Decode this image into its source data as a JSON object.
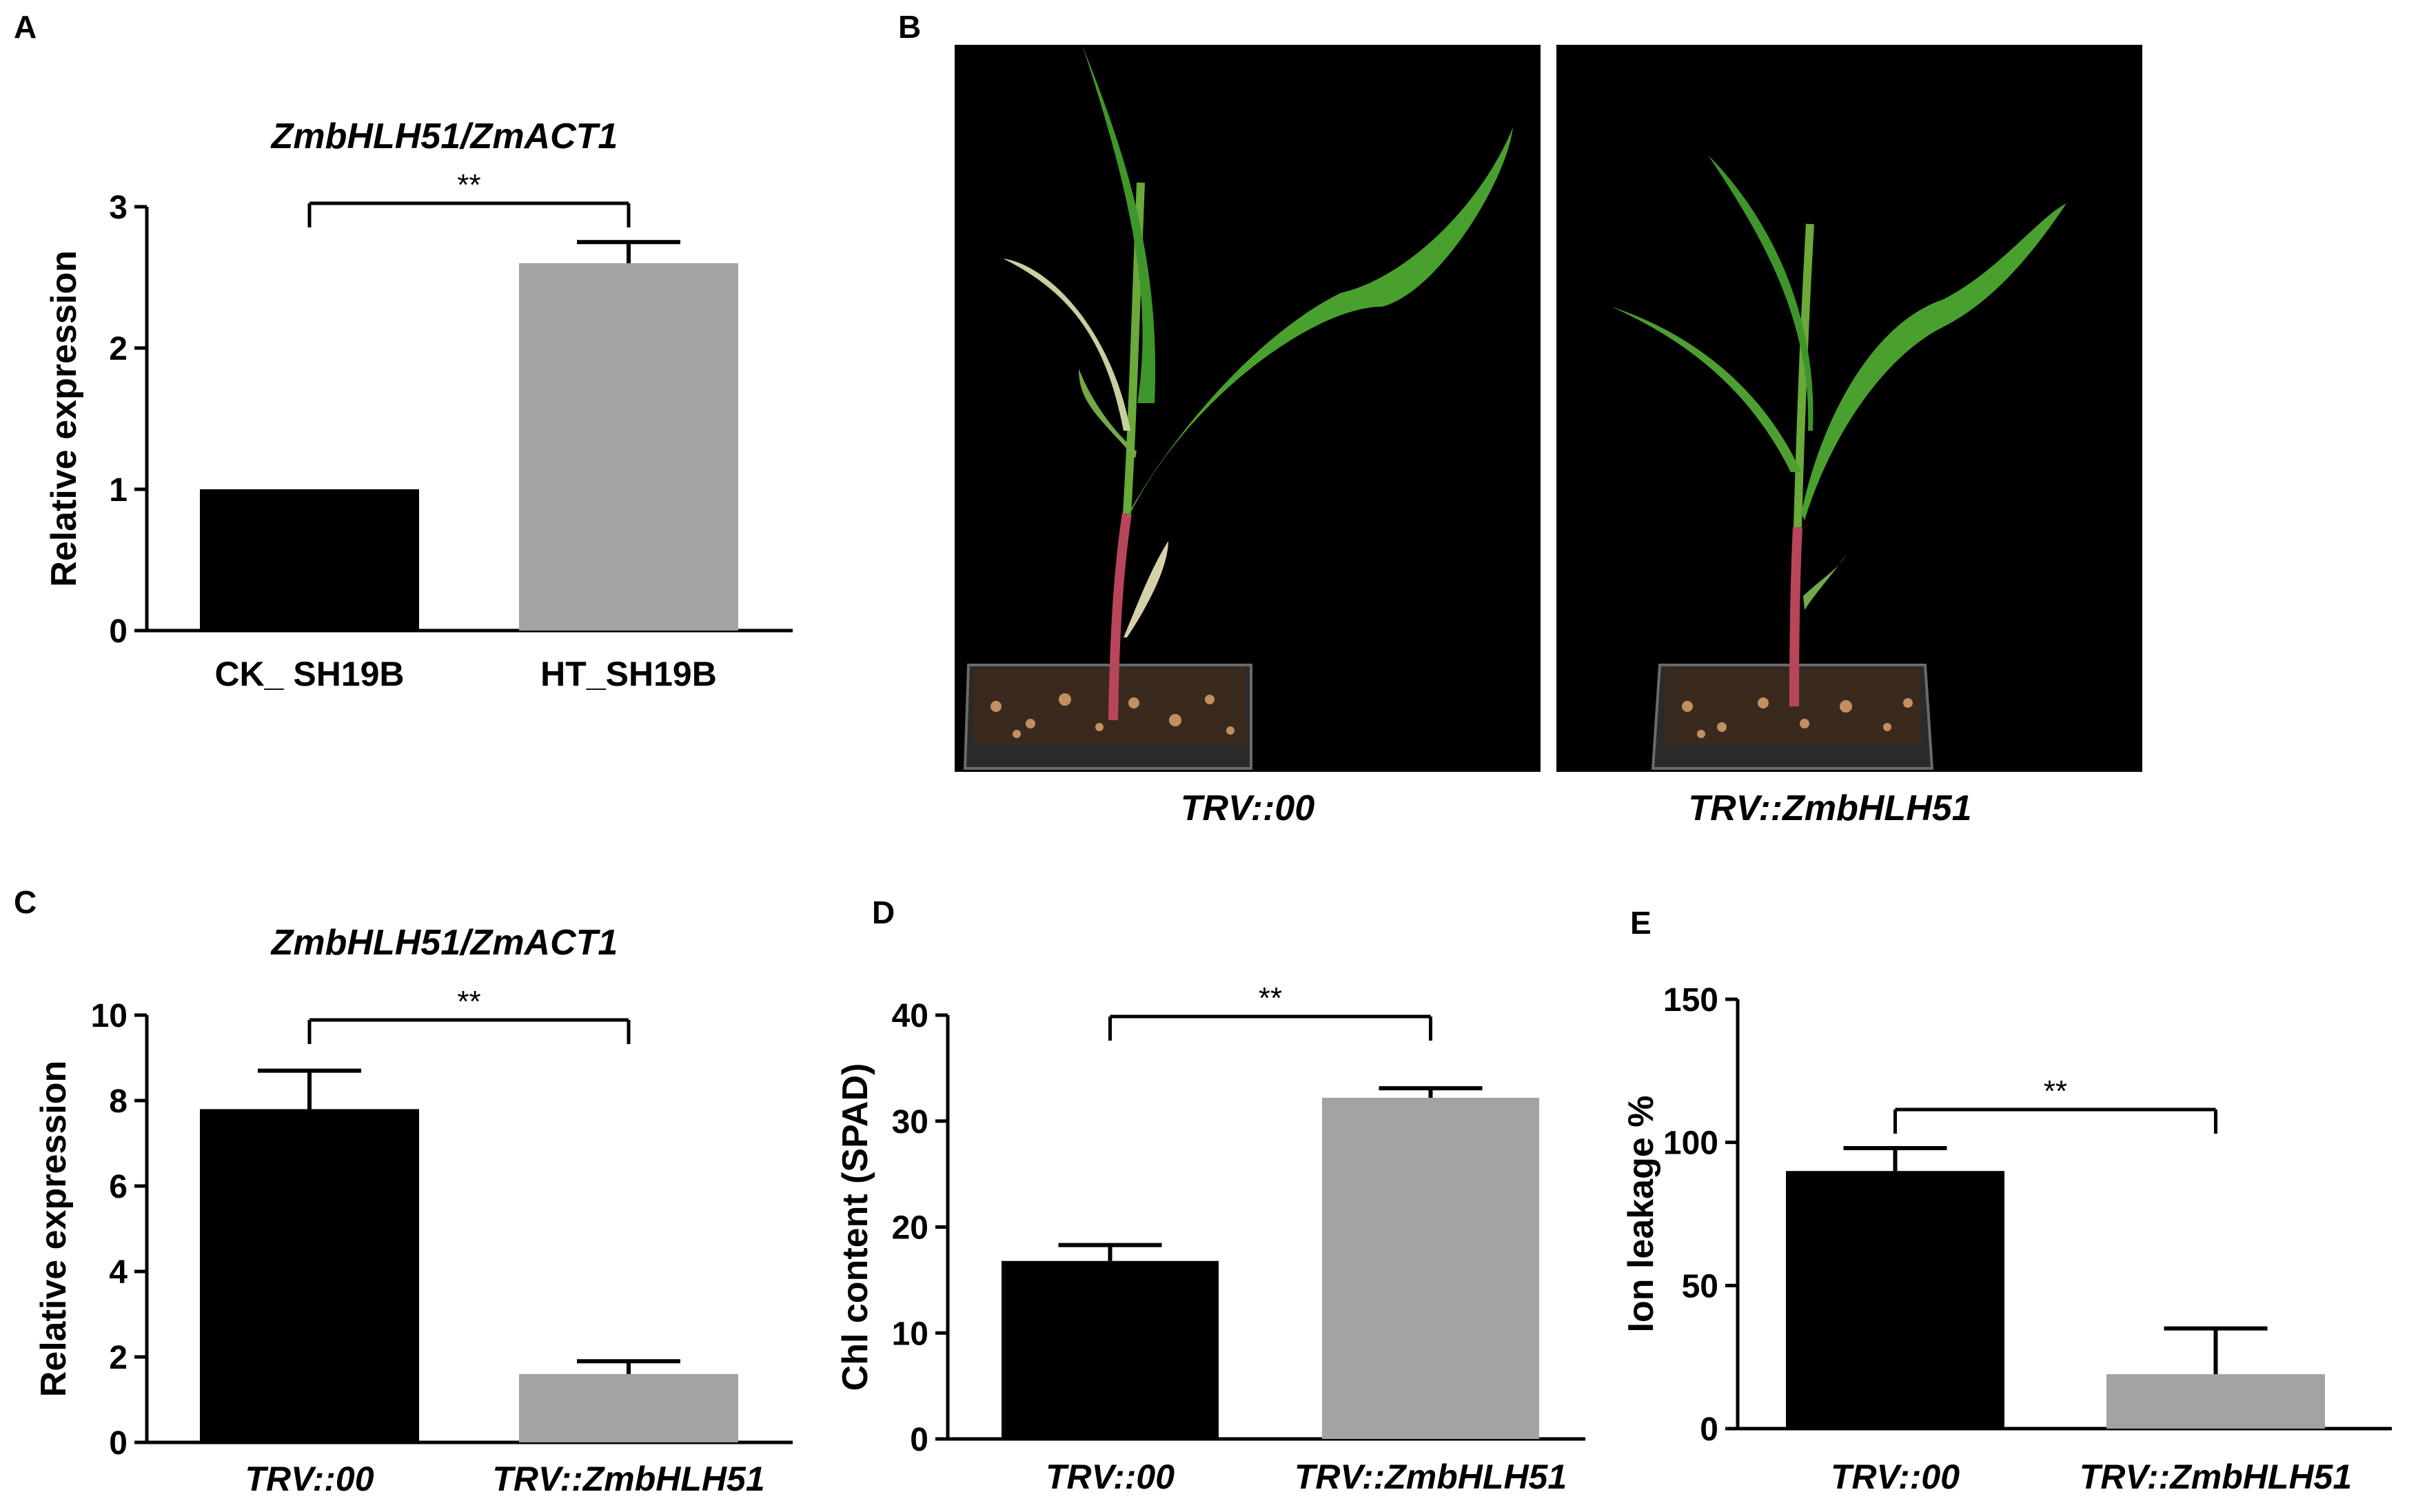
{
  "panels": {
    "A": {
      "label": "A",
      "title": "ZmbHLH51/ZmACT1",
      "significance": "**",
      "chart_data": {
        "type": "bar",
        "categories": [
          "CK_ SH19B",
          "HT_SH19B"
        ],
        "values": [
          1.0,
          2.6
        ],
        "errors": [
          0.0,
          0.15
        ],
        "colors": [
          "#000000",
          "#a3a3a3"
        ],
        "ylabel": "Relative expression",
        "ylim": [
          0,
          3
        ],
        "yticks": [
          0,
          1,
          2,
          3
        ],
        "italic_categories": false
      }
    },
    "B": {
      "label": "B",
      "photos": [
        {
          "caption": "TRV::00"
        },
        {
          "caption": "TRV::ZmbHLH51"
        }
      ]
    },
    "C": {
      "label": "C",
      "title": "ZmbHLH51/ZmACT1",
      "significance": "**",
      "chart_data": {
        "type": "bar",
        "categories": [
          "TRV::00",
          "TRV::ZmbHLH51"
        ],
        "values": [
          7.8,
          1.6
        ],
        "errors": [
          0.9,
          0.3
        ],
        "colors": [
          "#000000",
          "#a3a3a3"
        ],
        "ylabel": "Relative expression",
        "ylim": [
          0,
          10
        ],
        "yticks": [
          0,
          2,
          4,
          6,
          8,
          10
        ],
        "italic_categories": true
      }
    },
    "D": {
      "label": "D",
      "significance": "**",
      "chart_data": {
        "type": "bar",
        "categories": [
          "TRV::00",
          "TRV::ZmbHLH51"
        ],
        "values": [
          16.8,
          32.2
        ],
        "errors": [
          1.5,
          0.9
        ],
        "colors": [
          "#000000",
          "#a3a3a3"
        ],
        "ylabel": "Chl content (SPAD)",
        "ylim": [
          0,
          40
        ],
        "yticks": [
          0,
          10,
          20,
          30,
          40
        ],
        "italic_categories": true
      }
    },
    "E": {
      "label": "E",
      "significance": "**",
      "chart_data": {
        "type": "bar",
        "categories": [
          "TRV::00",
          "TRV::ZmbHLH51"
        ],
        "values": [
          90,
          19
        ],
        "errors": [
          8,
          16
        ],
        "colors": [
          "#000000",
          "#a3a3a3"
        ],
        "ylabel": "Ion leakage %",
        "ylim": [
          0,
          150
        ],
        "yticks": [
          0,
          50,
          100,
          150
        ],
        "italic_categories": true
      }
    }
  }
}
